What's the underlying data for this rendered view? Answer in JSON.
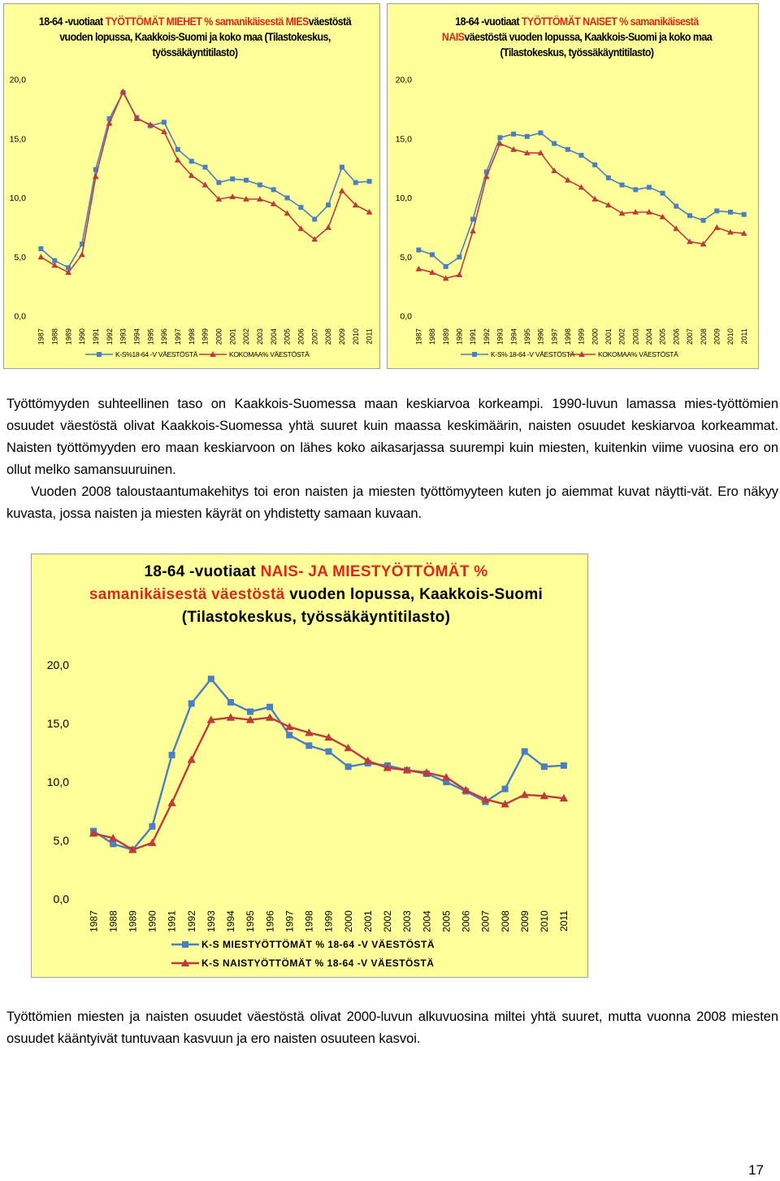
{
  "colors": {
    "blue": "#4a7fc1",
    "red": "#c0393b",
    "bg": "#ffff99",
    "title_red": "#e0261b"
  },
  "chart_data": [
    {
      "type": "line",
      "title_prefix": "18-64 -vuotiaat ",
      "title_highlight": "TYÖTTÖMÄT MIEHET % samanikäisestä MIES",
      "title_rest": "väestöstä vuoden lopussa, Kaakkois-Suomi ja koko maa (Tilastokeskus, työssäkäyntitilasto)",
      "ylim": [
        0,
        20
      ],
      "yticks": [
        "0,0",
        "5,0",
        "10,0",
        "15,0",
        "20,0"
      ],
      "ytick_values": [
        0,
        5,
        10,
        15,
        20
      ],
      "categories": [
        "1987",
        "1988",
        "1989",
        "1990",
        "1991",
        "1992",
        "1993",
        "1994",
        "1995",
        "1996",
        "1997",
        "1998",
        "1999",
        "2000",
        "2001",
        "2002",
        "2003",
        "2004",
        "2005",
        "2006",
        "2007",
        "2008",
        "2009",
        "2010",
        "2011"
      ],
      "series": [
        {
          "name": "K-S%18-64 -V VÄESTÖSTÄ",
          "color": "#4a7fc1",
          "marker": "square",
          "values": [
            5.7,
            4.7,
            4.1,
            6.1,
            12.4,
            16.7,
            18.9,
            16.8,
            16.1,
            16.4,
            14.1,
            13.1,
            12.6,
            11.3,
            11.6,
            11.5,
            11.1,
            10.7,
            10.0,
            9.2,
            8.2,
            9.4,
            12.6,
            11.3,
            11.4
          ]
        },
        {
          "name": "KOKOMAA% VÄESTÖSTÄ",
          "color": "#c0393b",
          "marker": "triangle",
          "values": [
            5.0,
            4.3,
            3.7,
            5.2,
            11.8,
            16.3,
            19.0,
            16.7,
            16.2,
            15.6,
            13.2,
            11.9,
            11.1,
            9.9,
            10.1,
            9.9,
            9.9,
            9.5,
            8.7,
            7.4,
            6.5,
            7.5,
            10.6,
            9.4,
            8.8
          ]
        }
      ]
    },
    {
      "type": "line",
      "title_prefix": "18-64 -vuotiaat ",
      "title_highlight": "TYÖTTÖMÄT NAISET % samanikäisestä NAIS",
      "title_rest": "väestöstä vuoden lopussa, Kaakkois-Suomi ja koko maa (Tilastokeskus, työssäkäyntitilasto)",
      "ylim": [
        0,
        20
      ],
      "yticks": [
        "0,0",
        "5,0",
        "10,0",
        "15,0",
        "20,0"
      ],
      "ytick_values": [
        0,
        5,
        10,
        15,
        20
      ],
      "categories": [
        "1987",
        "1988",
        "1989",
        "1990",
        "1991",
        "1992",
        "1993",
        "1994",
        "1995",
        "1996",
        "1997",
        "1998",
        "1999",
        "2000",
        "2001",
        "2002",
        "2003",
        "2004",
        "2005",
        "2006",
        "2007",
        "2008",
        "2009",
        "2010",
        "2011"
      ],
      "series": [
        {
          "name": "K-S% 18-64 -V VÄESTÖSTÄ",
          "color": "#4a7fc1",
          "marker": "square",
          "values": [
            5.6,
            5.2,
            4.2,
            5.0,
            8.2,
            12.2,
            15.1,
            15.4,
            15.2,
            15.5,
            14.6,
            14.1,
            13.6,
            12.8,
            11.7,
            11.1,
            10.7,
            10.9,
            10.4,
            9.3,
            8.5,
            8.1,
            8.9,
            8.8,
            8.6
          ]
        },
        {
          "name": "KOKOMAA% VÄESTÖSTÄ",
          "color": "#c0393b",
          "marker": "triangle",
          "values": [
            4.0,
            3.7,
            3.2,
            3.5,
            7.2,
            11.8,
            14.6,
            14.1,
            13.8,
            13.8,
            12.3,
            11.5,
            10.9,
            9.9,
            9.4,
            8.7,
            8.8,
            8.8,
            8.4,
            7.4,
            6.3,
            6.1,
            7.5,
            7.1,
            7.0
          ]
        }
      ]
    },
    {
      "type": "line",
      "title_prefix": "18-64 -vuotiaat ",
      "title_highlight": "NAIS- JA MIESTYÖTTÖMÄT % samanikäisestä väestöstä",
      "title_rest": " vuoden lopussa, Kaakkois-Suomi (Tilastokeskus, työssäkäyntitilasto)",
      "ylim": [
        0,
        20
      ],
      "yticks": [
        "0,0",
        "5,0",
        "10,0",
        "15,0",
        "20,0"
      ],
      "ytick_values": [
        0,
        5,
        10,
        15,
        20
      ],
      "categories": [
        "1987",
        "1988",
        "1989",
        "1990",
        "1991",
        "1992",
        "1993",
        "1994",
        "1995",
        "1996",
        "1997",
        "1998",
        "1999",
        "2000",
        "2001",
        "2002",
        "2003",
        "2004",
        "2005",
        "2006",
        "2007",
        "2008",
        "2009",
        "2010",
        "2011"
      ],
      "series": [
        {
          "name": "K-S MIESTYÖTTÖMÄT % 18-64 -V VÄESTÖSTÄ",
          "color": "#4a7fc1",
          "marker": "square",
          "values": [
            5.8,
            4.7,
            4.2,
            6.2,
            12.3,
            16.7,
            18.8,
            16.8,
            16.0,
            16.4,
            14.0,
            13.1,
            12.6,
            11.3,
            11.6,
            11.4,
            11.0,
            10.7,
            10.0,
            9.2,
            8.3,
            9.4,
            12.6,
            11.3,
            11.4
          ]
        },
        {
          "name": "K-S NAISTYÖTTÖMÄT % 18-64 -V VÄESTÖSTÄ",
          "color": "#c0393b",
          "marker": "triangle",
          "values": [
            5.6,
            5.2,
            4.2,
            4.8,
            8.2,
            11.9,
            15.3,
            15.5,
            15.3,
            15.5,
            14.7,
            14.2,
            13.8,
            12.9,
            11.8,
            11.2,
            11.0,
            10.8,
            10.4,
            9.3,
            8.5,
            8.1,
            8.9,
            8.8,
            8.6
          ]
        }
      ]
    }
  ],
  "text": {
    "para1": "Työttömyyden suhteellinen taso on Kaakkois-Suomessa maan keskiarvoa korkeampi. 1990-luvun lamassa mies-työttömien osuudet väestöstä olivat Kaakkois-Suomessa yhtä suuret kuin maassa keskimäärin, naisten osuudet keskiarvoa korkeammat. Naisten työttömyyden ero maan keskiarvoon on lähes koko aikasarjassa suurempi kuin miesten, kuitenkin viime vuosina ero on ollut melko samansuuruinen.",
    "para2": "Vuoden 2008 taloustaantumakehitys toi eron naisten ja miesten työttömyyteen kuten jo aiemmat kuvat näytti-vät. Ero näkyy kuvasta, jossa naisten ja miesten käyrät on yhdistetty samaan kuvaan.",
    "para3": "Työttömien miesten ja naisten osuudet väestöstä olivat 2000-luvun alkuvuosina miltei yhtä suuret, mutta vuonna 2008 miesten osuudet kääntyivät tuntuvaan kasvuun ja ero naisten osuuteen kasvoi.",
    "page_number": "17"
  }
}
